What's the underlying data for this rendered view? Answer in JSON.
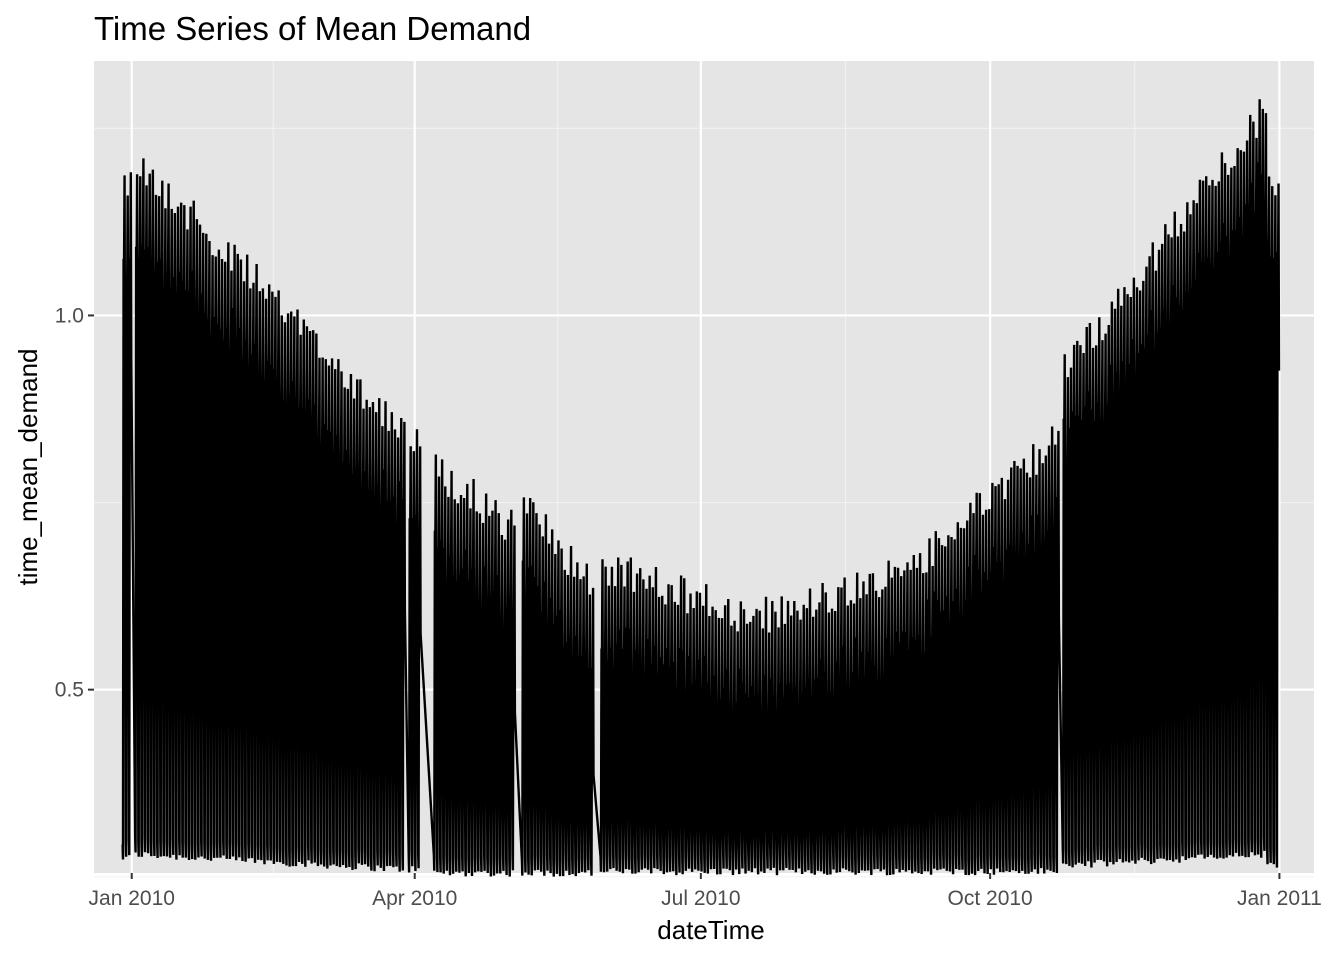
{
  "chart_data": {
    "type": "line",
    "title": "Time Series of Mean Demand",
    "xlabel": "dateTime",
    "ylabel": "time_mean_demand",
    "x_ticks": [
      "Jan 2010",
      "Apr 2010",
      "Jul 2010",
      "Oct 2010",
      "Jan 2011"
    ],
    "y_ticks": [
      "0.5",
      "1.0"
    ],
    "y_tick_values": [
      0.5,
      1.0
    ],
    "xlim": [
      "2009-12-20",
      "2011-01-12"
    ],
    "ylim": [
      0.255,
      1.34
    ],
    "grid": true,
    "background": "#e5e5e5",
    "line_color": "#000000",
    "series": [
      {
        "name": "time_mean_demand",
        "description": "half-hourly mean demand, oscillating daily between a low trough and a high peak",
        "segments": [
          {
            "start": "2009-12-29",
            "end": "2009-12-31",
            "low": 0.27,
            "high": [
              1.22,
              1.2
            ]
          },
          {
            "start": "2010-01-02",
            "end": "2010-03-28",
            "low": [
              0.275,
              0.255
            ],
            "high": [
              1.23,
              0.87
            ]
          },
          {
            "start": "2010-03-30",
            "end": "2010-04-02",
            "low": 0.255,
            "high": 0.85
          },
          {
            "start": "2010-04-07",
            "end": "2010-05-02",
            "low": 0.25,
            "high": [
              0.82,
              0.74
            ]
          },
          {
            "start": "2010-05-05",
            "end": "2010-05-27",
            "low": 0.25,
            "high": [
              0.77,
              0.66
            ]
          },
          {
            "start": "2010-05-30",
            "end": "2010-10-22",
            "low": 0.252,
            "high": [
              0.69,
              0.62,
              0.68,
              0.86
            ]
          },
          {
            "start": "2010-10-24",
            "end": "2010-12-27",
            "low": [
              0.26,
              0.275
            ],
            "high": [
              0.95,
              1.3
            ]
          },
          {
            "start": "2010-12-28",
            "end": "2010-12-31",
            "low": 0.26,
            "high": 1.2
          }
        ]
      }
    ]
  }
}
